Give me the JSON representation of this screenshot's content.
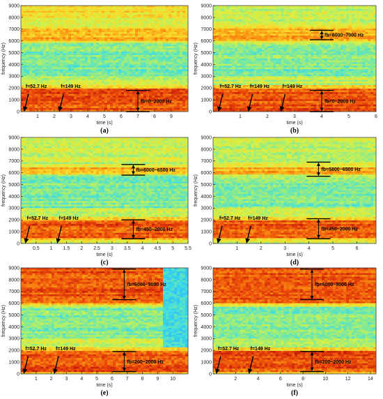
{
  "chart_data": [
    {
      "panel": "(a)",
      "type": "heatmap",
      "xlabel": "time (s)",
      "ylabel": "frequency (Hz)",
      "xlim": [
        0,
        10
      ],
      "ylim": [
        0,
        9000
      ],
      "xticks": [
        1,
        2,
        3,
        4,
        5,
        6,
        7,
        8,
        9
      ],
      "yticks": [
        0,
        1000,
        2000,
        3000,
        4000,
        5000,
        6000,
        7000,
        8000,
        9000
      ],
      "bands": [
        {
          "lo": 0,
          "hi": 2000,
          "level": "strong"
        },
        {
          "lo": 6000,
          "hi": 7000,
          "level": "medium"
        },
        {
          "lo": 8000,
          "hi": 9000,
          "level": "weak"
        }
      ],
      "annotations": [
        {
          "text": "f=52.7 Hz",
          "kind": "arrow",
          "x": 0.2
        },
        {
          "text": "f=149 Hz",
          "kind": "arrow",
          "x": 2.3
        },
        {
          "text": "fb=0~2000 Hz",
          "kind": "range",
          "x": 7.0,
          "lo": 0,
          "hi": 1800
        }
      ]
    },
    {
      "panel": "(b)",
      "type": "heatmap",
      "xlabel": "time (s)",
      "ylabel": "frequency (Hz)",
      "xlim": [
        0,
        6
      ],
      "ylim": [
        0,
        9000
      ],
      "xticks": [
        1,
        2,
        3,
        4,
        5,
        6
      ],
      "yticks": [
        0,
        1000,
        2000,
        3000,
        4000,
        5000,
        6000,
        7000,
        8000,
        9000
      ],
      "bands": [
        {
          "lo": 0,
          "hi": 2000,
          "level": "strong"
        },
        {
          "lo": 6000,
          "hi": 7000,
          "level": "medium"
        }
      ],
      "annotations": [
        {
          "text": "f=52.7 Hz",
          "kind": "arrow",
          "x": 0.2
        },
        {
          "text": "f=149 Hz",
          "kind": "arrow",
          "x": 1.3
        },
        {
          "text": "f=149 Hz",
          "kind": "arrow",
          "x": 2.5
        },
        {
          "text": "fb=0~2000 Hz",
          "kind": "range",
          "x": 4.0,
          "lo": 0,
          "hi": 1800
        },
        {
          "text": "fb=6000~7000 Hz",
          "kind": "range",
          "x": 4.0,
          "lo": 6100,
          "hi": 6900
        }
      ]
    },
    {
      "panel": "(c)",
      "type": "heatmap",
      "xlabel": "time (s)",
      "ylabel": "frequency (Hz)",
      "xlim": [
        0,
        5.5
      ],
      "ylim": [
        0,
        9000
      ],
      "xticks": [
        0.5,
        1,
        1.5,
        2,
        2.5,
        3,
        3.5,
        4,
        4.5,
        5,
        5.5
      ],
      "yticks": [
        0,
        1000,
        2000,
        3000,
        4000,
        5000,
        6000,
        7000,
        8000,
        9000
      ],
      "bands": [
        {
          "lo": 450,
          "hi": 2000,
          "level": "strong"
        },
        {
          "lo": 6000,
          "hi": 6500,
          "level": "medium"
        }
      ],
      "annotations": [
        {
          "text": "f=52.7 Hz",
          "kind": "arrow",
          "x": 0.15
        },
        {
          "text": "f=149 Hz",
          "kind": "arrow",
          "x": 1.2
        },
        {
          "text": "fb=6000~6500 Hz",
          "kind": "range",
          "x": 3.7,
          "lo": 5800,
          "hi": 6700
        },
        {
          "text": "fb=450~2000 Hz",
          "kind": "range",
          "x": 3.7,
          "lo": 400,
          "hi": 2000
        }
      ]
    },
    {
      "panel": "(d)",
      "type": "heatmap",
      "xlabel": "time (s)",
      "ylabel": "frequency (Hz)",
      "xlim": [
        0,
        6.8
      ],
      "ylim": [
        0,
        9000
      ],
      "xticks": [
        1,
        2,
        3,
        4,
        5,
        6
      ],
      "yticks": [
        0,
        1000,
        2000,
        3000,
        4000,
        5000,
        6000,
        7000,
        8000,
        9000
      ],
      "bands": [
        {
          "lo": 450,
          "hi": 2000,
          "level": "strong"
        },
        {
          "lo": 5800,
          "hi": 6500,
          "level": "medium"
        }
      ],
      "annotations": [
        {
          "text": "f=52.7 Hz",
          "kind": "arrow",
          "x": 0.2
        },
        {
          "text": "f=149 Hz",
          "kind": "arrow",
          "x": 1.4
        },
        {
          "text": "fb=5800~6500 Hz",
          "kind": "range",
          "x": 4.4,
          "lo": 5700,
          "hi": 6900
        },
        {
          "text": "fb=450~2000 Hz",
          "kind": "range",
          "x": 4.4,
          "lo": 400,
          "hi": 2100
        }
      ]
    },
    {
      "panel": "(e)",
      "type": "heatmap",
      "xlabel": "time (s)",
      "ylabel": "frequency (Hz)",
      "xlim": [
        0,
        11
      ],
      "ylim": [
        0,
        9000
      ],
      "xticks": [
        1,
        2,
        3,
        4,
        5,
        6,
        7,
        8,
        9,
        10
      ],
      "yticks": [
        0,
        1000,
        2000,
        3000,
        4000,
        5000,
        6000,
        7000,
        8000,
        9000
      ],
      "bands": [
        {
          "lo": 200,
          "hi": 2000,
          "level": "strong"
        },
        {
          "lo": 6000,
          "hi": 9000,
          "level": "strong"
        }
      ],
      "quiet_region": {
        "x_from": 9.4,
        "y_from": 2300
      },
      "annotations": [
        {
          "text": "f=52.7 Hz",
          "kind": "arrow",
          "x": 0.2
        },
        {
          "text": "f=149 Hz",
          "kind": "arrow",
          "x": 2.2
        },
        {
          "text": "fb=6000~9000 Hz",
          "kind": "range",
          "x": 6.8,
          "lo": 6300,
          "hi": 8900
        },
        {
          "text": "fb=200~2000 Hz",
          "kind": "range",
          "x": 6.8,
          "lo": 200,
          "hi": 1900
        }
      ]
    },
    {
      "panel": "(f)",
      "type": "heatmap",
      "xlabel": "time (s)",
      "ylabel": "frequency (Hz)",
      "xlim": [
        0,
        14.5
      ],
      "ylim": [
        0,
        9000
      ],
      "xticks": [
        2,
        4,
        6,
        8,
        10,
        12,
        14
      ],
      "yticks": [
        0,
        1000,
        2000,
        3000,
        4000,
        5000,
        6000,
        7000,
        8000,
        9000
      ],
      "bands": [
        {
          "lo": 200,
          "hi": 2000,
          "level": "strong"
        },
        {
          "lo": 6000,
          "hi": 9000,
          "level": "strong"
        }
      ],
      "annotations": [
        {
          "text": "f=52.7 Hz",
          "kind": "arrow",
          "x": 0.3
        },
        {
          "text": "f=149 Hz",
          "kind": "arrow",
          "x": 3.2
        },
        {
          "text": "fb=6000~9000 Hz",
          "kind": "range",
          "x": 8.8,
          "lo": 6300,
          "hi": 8900
        },
        {
          "text": "fb=200~2000 Hz",
          "kind": "range",
          "x": 8.8,
          "lo": 200,
          "hi": 1900
        }
      ]
    }
  ]
}
